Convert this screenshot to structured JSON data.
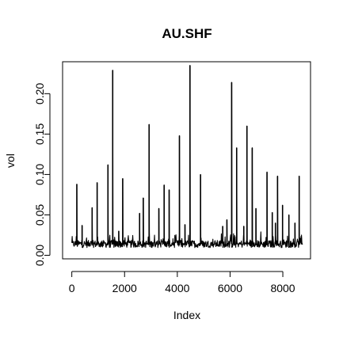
{
  "chart_data": {
    "type": "line",
    "title": "AU.SHF",
    "xlabel": "Index",
    "ylabel": "vol",
    "xlim": [
      -350,
      9050
    ],
    "ylim": [
      -0.0044,
      0.2395
    ],
    "xticks": [
      0,
      2000,
      4000,
      6000,
      8000
    ],
    "xtick_labels": [
      "0",
      "2000",
      "4000",
      "6000",
      "8000"
    ],
    "yticks": [
      0.0,
      0.05,
      0.1,
      0.15,
      0.2
    ],
    "ytick_labels": [
      "0.00",
      "0.05",
      "0.10",
      "0.15",
      "0.20"
    ],
    "grid": false,
    "legend": "none",
    "baseline": 0.014,
    "n_points": 8760,
    "series": [
      {
        "color": "#000000",
        "spikes": [
          {
            "x": 190,
            "y": 0.088
          },
          {
            "x": 390,
            "y": 0.037
          },
          {
            "x": 770,
            "y": 0.059
          },
          {
            "x": 960,
            "y": 0.09
          },
          {
            "x": 1370,
            "y": 0.112
          },
          {
            "x": 1550,
            "y": 0.229
          },
          {
            "x": 1780,
            "y": 0.03
          },
          {
            "x": 1930,
            "y": 0.095
          },
          {
            "x": 2570,
            "y": 0.052
          },
          {
            "x": 2710,
            "y": 0.071
          },
          {
            "x": 2930,
            "y": 0.162
          },
          {
            "x": 3300,
            "y": 0.058
          },
          {
            "x": 3500,
            "y": 0.087
          },
          {
            "x": 3690,
            "y": 0.081
          },
          {
            "x": 4080,
            "y": 0.148
          },
          {
            "x": 4290,
            "y": 0.038
          },
          {
            "x": 4480,
            "y": 0.235
          },
          {
            "x": 4880,
            "y": 0.1
          },
          {
            "x": 5720,
            "y": 0.036
          },
          {
            "x": 5880,
            "y": 0.044
          },
          {
            "x": 6060,
            "y": 0.214
          },
          {
            "x": 6250,
            "y": 0.133
          },
          {
            "x": 6520,
            "y": 0.036
          },
          {
            "x": 6640,
            "y": 0.16
          },
          {
            "x": 6840,
            "y": 0.133
          },
          {
            "x": 6980,
            "y": 0.058
          },
          {
            "x": 7400,
            "y": 0.103
          },
          {
            "x": 7600,
            "y": 0.053
          },
          {
            "x": 7720,
            "y": 0.04
          },
          {
            "x": 7800,
            "y": 0.098
          },
          {
            "x": 7990,
            "y": 0.062
          },
          {
            "x": 8230,
            "y": 0.05
          },
          {
            "x": 8460,
            "y": 0.04
          },
          {
            "x": 8620,
            "y": 0.098
          },
          {
            "x": 8700,
            "y": 0.022
          }
        ]
      }
    ]
  }
}
